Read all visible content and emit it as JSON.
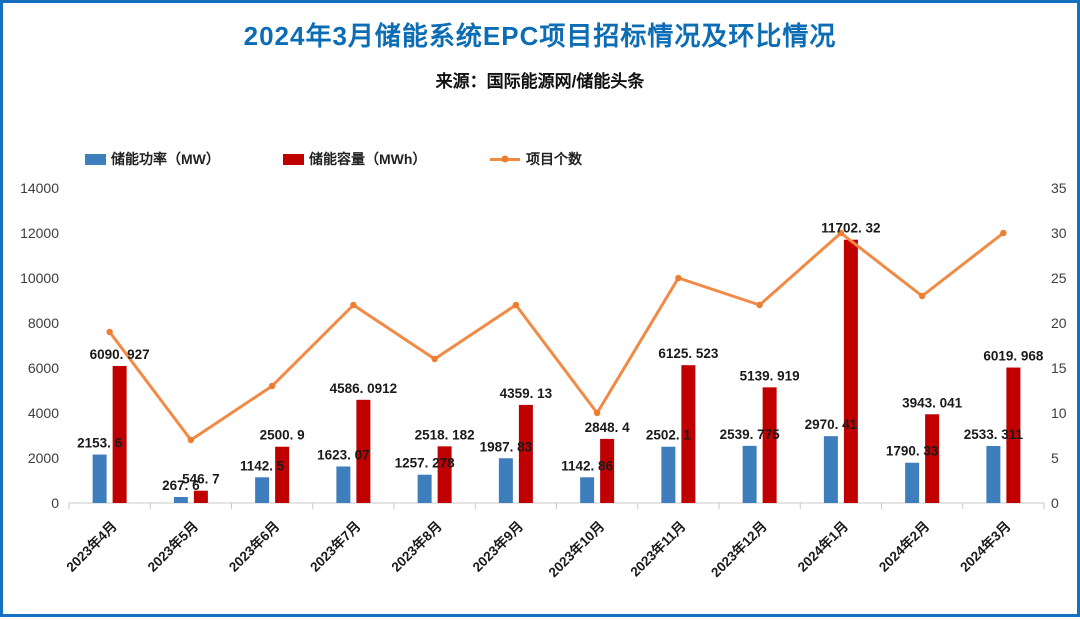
{
  "window": {
    "border_color": "#1470BE",
    "background_color": "#FFFFFF"
  },
  "header": {
    "title": "2024年3月储能系统EPC项目招标情况及环比情况",
    "title_color": "#0C6CB4",
    "subtitle": "来源：国际能源网/储能头条"
  },
  "legend": [
    {
      "label": "储能功率（MW）",
      "marker": "bar-swatch",
      "color": "#3F7EBD"
    },
    {
      "label": "储能容量（MWh）",
      "marker": "bar-swatch",
      "color": "#C00000"
    },
    {
      "label": "项目个数",
      "marker": "line-dot",
      "color": "#F18A44"
    }
  ],
  "chart_data": {
    "type": "bar",
    "subtype": "grouped bars with secondary-axis line (combo)",
    "title": "2024年3月储能系统EPC项目招标情况及环比情况",
    "source": "来源：国际能源网/储能头条",
    "categories": [
      "2023年4月",
      "2023年5月",
      "2023年6月",
      "2023年7月",
      "2023年8月",
      "2023年9月",
      "2023年10月",
      "2023年11月",
      "2023年12月",
      "2024年1月",
      "2024年2月",
      "2024年3月"
    ],
    "series": [
      {
        "name": "储能功率（MW）",
        "type": "bar",
        "axis": "left",
        "color": "#3F7EBD",
        "values": [
          2153.6,
          267.6,
          1142.5,
          1623.07,
          1257.278,
          1987.83,
          1142.86,
          2502.1,
          2539.775,
          2970.41,
          1790.33,
          2533.311
        ]
      },
      {
        "name": "储能容量（MWh）",
        "type": "bar",
        "axis": "left",
        "color": "#C00000",
        "values": [
          6090.927,
          546.7,
          2500.9,
          4586.0912,
          2518.182,
          4359.13,
          2848.4,
          6125.523,
          5139.919,
          11702.32,
          3943.041,
          6019.968
        ]
      },
      {
        "name": "项目个数",
        "type": "line",
        "axis": "right",
        "color": "#F18A44",
        "marker_color": "#ED7D31",
        "values": [
          19,
          7,
          13,
          22,
          16,
          22,
          10,
          25,
          22,
          30,
          23,
          30
        ]
      }
    ],
    "left_axis": {
      "min": 0,
      "max": 14000,
      "ticks": [
        0,
        2000,
        4000,
        6000,
        8000,
        10000,
        12000,
        14000
      ]
    },
    "right_axis": {
      "min": 0,
      "max": 35,
      "ticks": [
        0,
        5,
        10,
        15,
        20,
        25,
        30,
        35
      ]
    },
    "grid": false,
    "data_labels_on_bars": true,
    "x_label_rotation_deg": -45,
    "legend_position": "top-left",
    "axis_line_color": "#C8C8C8"
  }
}
